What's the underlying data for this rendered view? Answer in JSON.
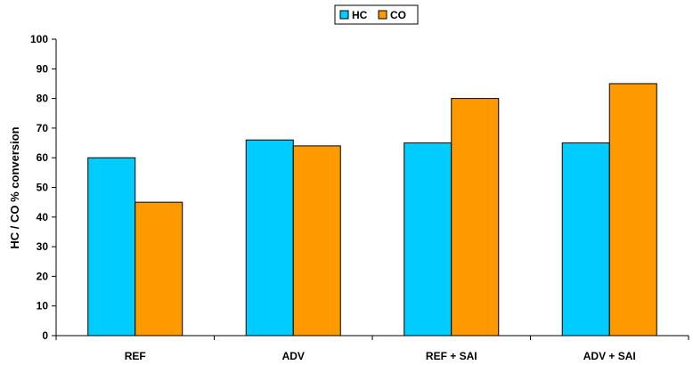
{
  "chart_data": {
    "type": "bar",
    "categories": [
      "REF",
      "ADV",
      "REF +  SAI",
      "ADV + SAI"
    ],
    "series": [
      {
        "name": "HC",
        "values": [
          60,
          66,
          65,
          65
        ],
        "color": "#00ccff"
      },
      {
        "name": "CO",
        "values": [
          45,
          64,
          80,
          85
        ],
        "color": "#ff9900"
      }
    ],
    "title": "",
    "xlabel": "",
    "ylabel": "HC / CO % conversion",
    "ylim": [
      0,
      100
    ],
    "yticks": [
      0,
      10,
      20,
      30,
      40,
      50,
      60,
      70,
      80,
      90,
      100
    ],
    "grid": false,
    "legend_position": "top-center"
  }
}
